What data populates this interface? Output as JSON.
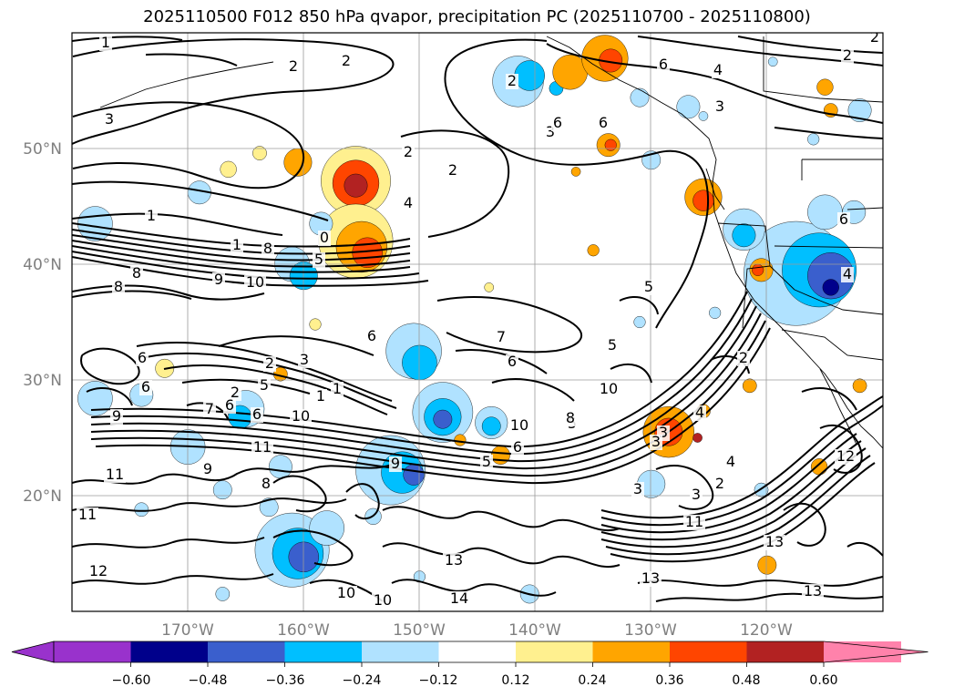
{
  "title": "2025110500 F012 850 hPa qvapor, precipitation PC (2025110700 - 2025110800)",
  "lat_labels": [
    "50°N",
    "40°N",
    "30°N",
    "20°N"
  ],
  "lon_labels": [
    "170°W",
    "160°W",
    "150°W",
    "140°W",
    "130°W",
    "120°W"
  ],
  "colorbar": {
    "colors": [
      "#9932cc",
      "#00008b",
      "#3a5fcd",
      "#00bfff",
      "#b0e2ff",
      "#ffffff",
      "#fff08f",
      "#ffa500",
      "#ff4500",
      "#b22222",
      "#ff82ab"
    ],
    "tick_labels": [
      "−0.60",
      "−0.48",
      "−0.36",
      "−0.24",
      "−0.12",
      "0.12",
      "0.24",
      "0.36",
      "0.48",
      "0.60"
    ]
  },
  "contour_labels": [
    "1",
    "2",
    "2",
    "3",
    "1",
    "2",
    "2",
    "3",
    "2",
    "6",
    "6",
    "6",
    "3",
    "4",
    "2",
    "2",
    "1",
    "0",
    "5",
    "8",
    "4",
    "8",
    "8",
    "9",
    "10",
    "5",
    "6",
    "6",
    "7",
    "6",
    "5",
    "2",
    "3",
    "1",
    "2",
    "5",
    "10",
    "5",
    "10",
    "9",
    "6",
    "6",
    "10",
    "11",
    "9",
    "8",
    "11",
    "7",
    "6",
    "5",
    "3",
    "4",
    "3",
    "2",
    "11",
    "11",
    "9",
    "13",
    "14",
    "12",
    "10",
    "13",
    "13",
    "13",
    "10",
    "12",
    "4",
    "4",
    "6",
    "3",
    "3",
    "2",
    "1",
    "6",
    "8"
  ],
  "precip_cells": [
    {
      "lon": -141.5,
      "lat": 55.8,
      "r": 2.2,
      "level": 4
    },
    {
      "lon": -140.5,
      "lat": 56.3,
      "r": 1.3,
      "level": 3
    },
    {
      "lon": -138.2,
      "lat": 55.2,
      "r": 0.6,
      "level": 3
    },
    {
      "lon": -137.0,
      "lat": 56.6,
      "r": 1.5,
      "level": 7
    },
    {
      "lon": -134.0,
      "lat": 57.8,
      "r": 2.0,
      "level": 7
    },
    {
      "lon": -133.5,
      "lat": 57.6,
      "r": 1.0,
      "level": 8
    },
    {
      "lon": -131.0,
      "lat": 54.4,
      "r": 0.8,
      "level": 4
    },
    {
      "lon": -126.8,
      "lat": 53.6,
      "r": 1.0,
      "level": 4
    },
    {
      "lon": -133.7,
      "lat": 50.3,
      "r": 1.0,
      "level": 7
    },
    {
      "lon": -133.5,
      "lat": 50.3,
      "r": 0.5,
      "level": 8
    },
    {
      "lon": -130.0,
      "lat": 49.0,
      "r": 0.8,
      "level": 4
    },
    {
      "lon": -125.5,
      "lat": 45.8,
      "r": 1.6,
      "level": 7
    },
    {
      "lon": -125.5,
      "lat": 45.5,
      "r": 0.9,
      "level": 8
    },
    {
      "lon": -155.5,
      "lat": 47.2,
      "r": 3.0,
      "level": 6
    },
    {
      "lon": -155.5,
      "lat": 47.0,
      "r": 2.0,
      "level": 8
    },
    {
      "lon": -155.5,
      "lat": 46.8,
      "r": 1.0,
      "level": 9
    },
    {
      "lon": -160.5,
      "lat": 48.8,
      "r": 1.2,
      "level": 7
    },
    {
      "lon": -163.8,
      "lat": 49.6,
      "r": 0.6,
      "level": 6
    },
    {
      "lon": -166.5,
      "lat": 48.2,
      "r": 0.7,
      "level": 6
    },
    {
      "lon": -155.5,
      "lat": 42.0,
      "r": 3.2,
      "level": 6
    },
    {
      "lon": -155.0,
      "lat": 41.5,
      "r": 2.2,
      "level": 7
    },
    {
      "lon": -154.5,
      "lat": 41.0,
      "r": 1.3,
      "level": 8
    },
    {
      "lon": -158.5,
      "lat": 43.5,
      "r": 1.0,
      "level": 4
    },
    {
      "lon": -161.0,
      "lat": 40.0,
      "r": 1.5,
      "level": 4
    },
    {
      "lon": -160.0,
      "lat": 39.0,
      "r": 1.2,
      "level": 3
    },
    {
      "lon": -178.0,
      "lat": 43.5,
      "r": 1.5,
      "level": 4
    },
    {
      "lon": -169.0,
      "lat": 46.2,
      "r": 1.0,
      "level": 4
    },
    {
      "lon": -150.5,
      "lat": 32.5,
      "r": 2.4,
      "level": 4
    },
    {
      "lon": -150.0,
      "lat": 31.5,
      "r": 1.5,
      "level": 3
    },
    {
      "lon": -162.0,
      "lat": 30.5,
      "r": 0.6,
      "level": 7
    },
    {
      "lon": -172.0,
      "lat": 31.0,
      "r": 0.8,
      "level": 6
    },
    {
      "lon": -174.0,
      "lat": 28.7,
      "r": 1.0,
      "level": 4
    },
    {
      "lon": -178.0,
      "lat": 28.4,
      "r": 1.5,
      "level": 4
    },
    {
      "lon": -148.0,
      "lat": 27.2,
      "r": 2.6,
      "level": 4
    },
    {
      "lon": -148.0,
      "lat": 26.8,
      "r": 1.6,
      "level": 3
    },
    {
      "lon": -148.0,
      "lat": 26.6,
      "r": 0.8,
      "level": 2
    },
    {
      "lon": -143.8,
      "lat": 26.3,
      "r": 1.4,
      "level": 4
    },
    {
      "lon": -143.8,
      "lat": 26.0,
      "r": 0.8,
      "level": 3
    },
    {
      "lon": -165.0,
      "lat": 27.5,
      "r": 1.6,
      "level": 4
    },
    {
      "lon": -165.5,
      "lat": 26.8,
      "r": 1.0,
      "level": 3
    },
    {
      "lon": -170.0,
      "lat": 24.2,
      "r": 1.5,
      "level": 4
    },
    {
      "lon": -162.0,
      "lat": 22.5,
      "r": 1.0,
      "level": 4
    },
    {
      "lon": -152.5,
      "lat": 22.2,
      "r": 3.0,
      "level": 4
    },
    {
      "lon": -151.5,
      "lat": 22.0,
      "r": 1.8,
      "level": 3
    },
    {
      "lon": -150.5,
      "lat": 21.8,
      "r": 0.9,
      "level": 2
    },
    {
      "lon": -167.0,
      "lat": 20.5,
      "r": 0.8,
      "level": 4
    },
    {
      "lon": -174.0,
      "lat": 18.8,
      "r": 0.6,
      "level": 4
    },
    {
      "lon": -163.0,
      "lat": 19.0,
      "r": 0.8,
      "level": 4
    },
    {
      "lon": -161.0,
      "lat": 15.3,
      "r": 3.2,
      "level": 4
    },
    {
      "lon": -160.5,
      "lat": 15.0,
      "r": 2.2,
      "level": 3
    },
    {
      "lon": -160.0,
      "lat": 14.7,
      "r": 1.3,
      "level": 2
    },
    {
      "lon": -158.0,
      "lat": 17.2,
      "r": 1.5,
      "level": 4
    },
    {
      "lon": -154.0,
      "lat": 18.2,
      "r": 0.7,
      "level": 4
    },
    {
      "lon": -150.0,
      "lat": 13.0,
      "r": 0.5,
      "level": 4
    },
    {
      "lon": -167.0,
      "lat": 11.5,
      "r": 0.6,
      "level": 4
    },
    {
      "lon": -140.5,
      "lat": 11.5,
      "r": 0.8,
      "level": 4
    },
    {
      "lon": -128.5,
      "lat": 25.5,
      "r": 2.2,
      "level": 7
    },
    {
      "lon": -128.5,
      "lat": 25.5,
      "r": 1.2,
      "level": 8
    },
    {
      "lon": -125.5,
      "lat": 27.3,
      "r": 0.6,
      "level": 7
    },
    {
      "lon": -126.0,
      "lat": 25.0,
      "r": 0.4,
      "level": 9
    },
    {
      "lon": -130.0,
      "lat": 21.0,
      "r": 1.2,
      "level": 4
    },
    {
      "lon": -121.5,
      "lat": 29.5,
      "r": 0.6,
      "level": 7
    },
    {
      "lon": -120.0,
      "lat": 14.0,
      "r": 0.8,
      "level": 7
    },
    {
      "lon": -120.5,
      "lat": 20.5,
      "r": 0.6,
      "level": 4
    },
    {
      "lon": -117.5,
      "lat": 39.2,
      "r": 4.5,
      "level": 4
    },
    {
      "lon": -115.5,
      "lat": 39.5,
      "r": 3.2,
      "level": 3
    },
    {
      "lon": -114.5,
      "lat": 39.0,
      "r": 2.0,
      "level": 2
    },
    {
      "lon": -114.5,
      "lat": 38.0,
      "r": 0.7,
      "level": 1
    },
    {
      "lon": -122.0,
      "lat": 43.0,
      "r": 1.8,
      "level": 4
    },
    {
      "lon": -122.0,
      "lat": 42.5,
      "r": 1.0,
      "level": 3
    },
    {
      "lon": -115.0,
      "lat": 44.5,
      "r": 1.5,
      "level": 4
    },
    {
      "lon": -112.5,
      "lat": 44.5,
      "r": 1.0,
      "level": 4
    },
    {
      "lon": -120.5,
      "lat": 39.5,
      "r": 1.0,
      "level": 7
    },
    {
      "lon": -120.8,
      "lat": 39.5,
      "r": 0.5,
      "level": 8
    },
    {
      "lon": -115.0,
      "lat": 55.3,
      "r": 0.7,
      "level": 7
    },
    {
      "lon": -114.5,
      "lat": 53.3,
      "r": 0.6,
      "level": 7
    },
    {
      "lon": -112.0,
      "lat": 53.3,
      "r": 1.0,
      "level": 4
    },
    {
      "lon": -116.0,
      "lat": 50.8,
      "r": 0.5,
      "level": 4
    },
    {
      "lon": -125.5,
      "lat": 52.8,
      "r": 0.4,
      "level": 4
    },
    {
      "lon": -119.5,
      "lat": 57.5,
      "r": 0.4,
      "level": 4
    },
    {
      "lon": -115.5,
      "lat": 22.5,
      "r": 0.7,
      "level": 7
    },
    {
      "lon": -112.0,
      "lat": 29.5,
      "r": 0.6,
      "level": 7
    },
    {
      "lon": -131.0,
      "lat": 35.0,
      "r": 0.5,
      "level": 4
    },
    {
      "lon": -124.5,
      "lat": 35.8,
      "r": 0.5,
      "level": 4
    },
    {
      "lon": -146.5,
      "lat": 24.8,
      "r": 0.5,
      "level": 7
    },
    {
      "lon": -143.0,
      "lat": 23.5,
      "r": 0.8,
      "level": 7
    },
    {
      "lon": -144.0,
      "lat": 38.0,
      "r": 0.4,
      "level": 6
    },
    {
      "lon": -135.0,
      "lat": 41.2,
      "r": 0.5,
      "level": 7
    },
    {
      "lon": -136.5,
      "lat": 48.0,
      "r": 0.4,
      "level": 7
    },
    {
      "lon": -159.0,
      "lat": 34.8,
      "r": 0.5,
      "level": 6
    }
  ]
}
